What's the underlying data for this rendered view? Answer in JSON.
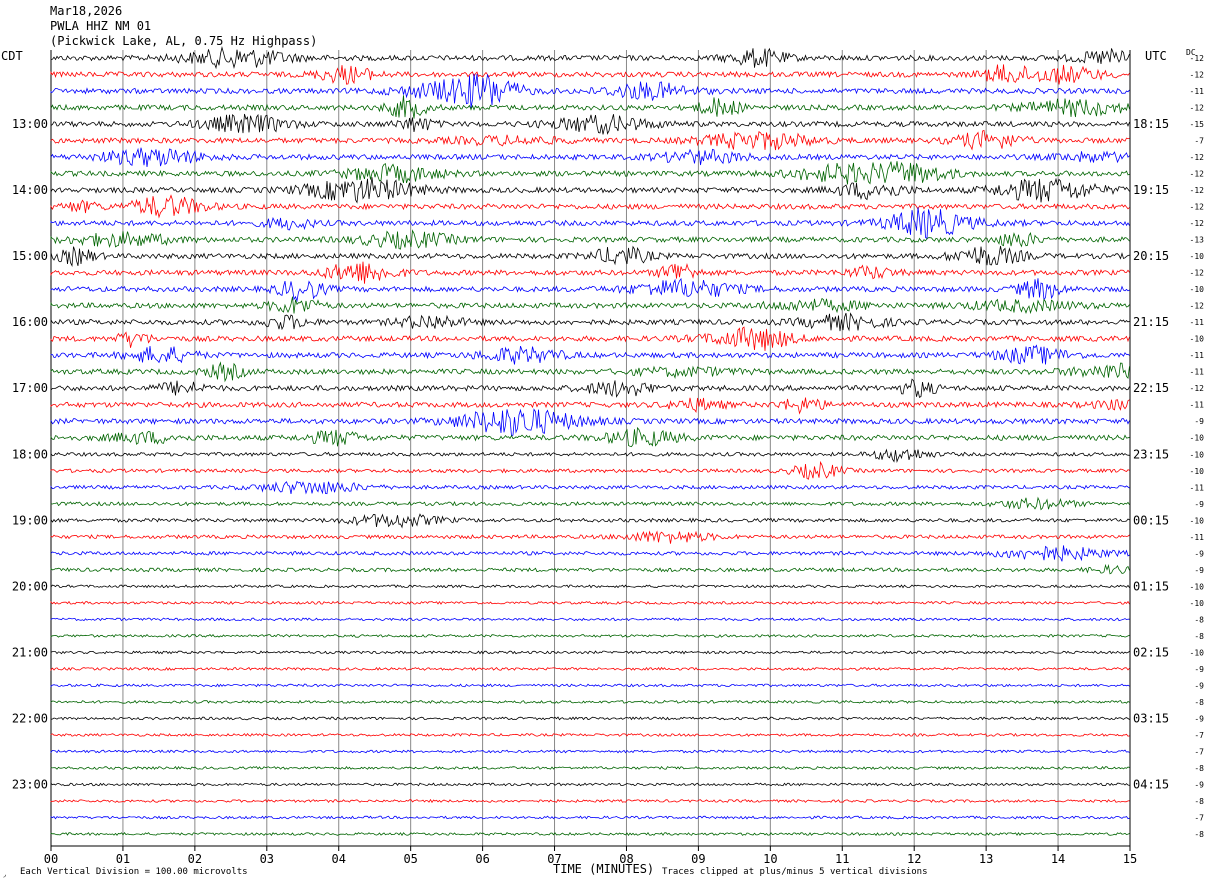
{
  "header": {
    "date": "Mar18,2026",
    "station": "PWLA HHZ NM 01",
    "location": "(Pickwick Lake, AL, 0.75 Hz Highpass)"
  },
  "left_tz": "CDT",
  "right_tz": "UTC",
  "dc_label": "DC",
  "footer": {
    "scale": "Each Vertical Division =  100.00 microvolts",
    "clip": "Traces clipped at plus/minus 5 vertical divisions",
    "corner": "◞"
  },
  "colors": [
    "#000000",
    "#ff0000",
    "#0000ff",
    "#006400"
  ],
  "chart_data": {
    "type": "line",
    "title": "PWLA HHZ NM 01",
    "xlabel": "TIME (MINUTES)",
    "ylabel": "",
    "x_ticks": [
      "00",
      "01",
      "02",
      "03",
      "04",
      "05",
      "06",
      "07",
      "08",
      "09",
      "10",
      "11",
      "12",
      "13",
      "14",
      "15"
    ],
    "xlim": [
      0,
      15
    ],
    "trace_count": 48,
    "minutes_per_trace": 15,
    "cdt_hour_labels": [
      "13:00",
      "14:00",
      "15:00",
      "16:00",
      "17:00",
      "18:00",
      "19:00",
      "20:00",
      "21:00",
      "22:00",
      "23:00"
    ],
    "utc_hour_labels": [
      "18:15",
      "19:15",
      "20:15",
      "21:15",
      "22:15",
      "23:15",
      "00:15",
      "01:15",
      "02:15",
      "03:15",
      "04:15"
    ],
    "dc_offsets": [
      -12,
      -12,
      -11,
      -12,
      -15,
      -7,
      -12,
      -12,
      -12,
      -12,
      -12,
      -13,
      -10,
      -12,
      -10,
      -12,
      -11,
      -10,
      -11,
      -11,
      -12,
      -11,
      -9,
      -10,
      -10,
      -10,
      -11,
      -9,
      -10,
      -11,
      -9,
      -9,
      -10,
      -10,
      -8,
      -8,
      -10,
      -9,
      -9,
      -8,
      -9,
      -7,
      -7,
      -8,
      -9,
      -8,
      -7,
      -8
    ]
  }
}
